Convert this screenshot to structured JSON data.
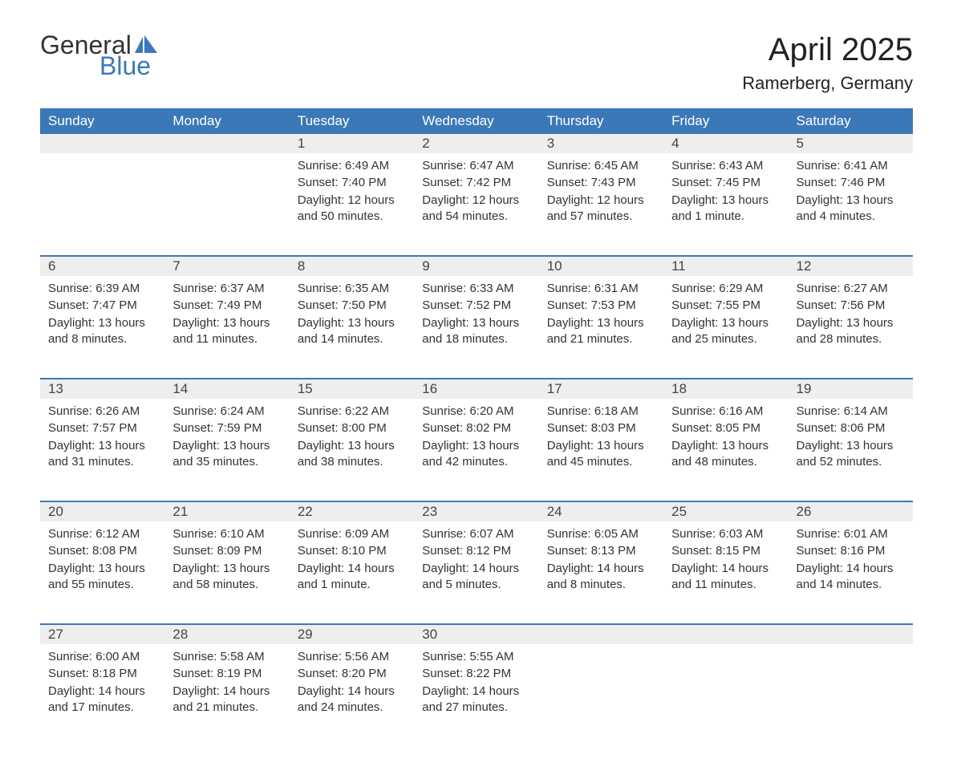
{
  "logo": {
    "general": "General",
    "blue": "Blue",
    "sail_color": "#3b78b8"
  },
  "title": "April 2025",
  "location": "Ramerberg, Germany",
  "colors": {
    "header_bg": "#3b78b8",
    "header_text": "#ffffff",
    "daynum_bg": "#eeeeee",
    "border": "#3b78b8",
    "text": "#333333"
  },
  "weekdays": [
    "Sunday",
    "Monday",
    "Tuesday",
    "Wednesday",
    "Thursday",
    "Friday",
    "Saturday"
  ],
  "weeks": [
    [
      null,
      null,
      {
        "n": "1",
        "sunrise": "6:49 AM",
        "sunset": "7:40 PM",
        "daylight": "12 hours and 50 minutes."
      },
      {
        "n": "2",
        "sunrise": "6:47 AM",
        "sunset": "7:42 PM",
        "daylight": "12 hours and 54 minutes."
      },
      {
        "n": "3",
        "sunrise": "6:45 AM",
        "sunset": "7:43 PM",
        "daylight": "12 hours and 57 minutes."
      },
      {
        "n": "4",
        "sunrise": "6:43 AM",
        "sunset": "7:45 PM",
        "daylight": "13 hours and 1 minute."
      },
      {
        "n": "5",
        "sunrise": "6:41 AM",
        "sunset": "7:46 PM",
        "daylight": "13 hours and 4 minutes."
      }
    ],
    [
      {
        "n": "6",
        "sunrise": "6:39 AM",
        "sunset": "7:47 PM",
        "daylight": "13 hours and 8 minutes."
      },
      {
        "n": "7",
        "sunrise": "6:37 AM",
        "sunset": "7:49 PM",
        "daylight": "13 hours and 11 minutes."
      },
      {
        "n": "8",
        "sunrise": "6:35 AM",
        "sunset": "7:50 PM",
        "daylight": "13 hours and 14 minutes."
      },
      {
        "n": "9",
        "sunrise": "6:33 AM",
        "sunset": "7:52 PM",
        "daylight": "13 hours and 18 minutes."
      },
      {
        "n": "10",
        "sunrise": "6:31 AM",
        "sunset": "7:53 PM",
        "daylight": "13 hours and 21 minutes."
      },
      {
        "n": "11",
        "sunrise": "6:29 AM",
        "sunset": "7:55 PM",
        "daylight": "13 hours and 25 minutes."
      },
      {
        "n": "12",
        "sunrise": "6:27 AM",
        "sunset": "7:56 PM",
        "daylight": "13 hours and 28 minutes."
      }
    ],
    [
      {
        "n": "13",
        "sunrise": "6:26 AM",
        "sunset": "7:57 PM",
        "daylight": "13 hours and 31 minutes."
      },
      {
        "n": "14",
        "sunrise": "6:24 AM",
        "sunset": "7:59 PM",
        "daylight": "13 hours and 35 minutes."
      },
      {
        "n": "15",
        "sunrise": "6:22 AM",
        "sunset": "8:00 PM",
        "daylight": "13 hours and 38 minutes."
      },
      {
        "n": "16",
        "sunrise": "6:20 AM",
        "sunset": "8:02 PM",
        "daylight": "13 hours and 42 minutes."
      },
      {
        "n": "17",
        "sunrise": "6:18 AM",
        "sunset": "8:03 PM",
        "daylight": "13 hours and 45 minutes."
      },
      {
        "n": "18",
        "sunrise": "6:16 AM",
        "sunset": "8:05 PM",
        "daylight": "13 hours and 48 minutes."
      },
      {
        "n": "19",
        "sunrise": "6:14 AM",
        "sunset": "8:06 PM",
        "daylight": "13 hours and 52 minutes."
      }
    ],
    [
      {
        "n": "20",
        "sunrise": "6:12 AM",
        "sunset": "8:08 PM",
        "daylight": "13 hours and 55 minutes."
      },
      {
        "n": "21",
        "sunrise": "6:10 AM",
        "sunset": "8:09 PM",
        "daylight": "13 hours and 58 minutes."
      },
      {
        "n": "22",
        "sunrise": "6:09 AM",
        "sunset": "8:10 PM",
        "daylight": "14 hours and 1 minute."
      },
      {
        "n": "23",
        "sunrise": "6:07 AM",
        "sunset": "8:12 PM",
        "daylight": "14 hours and 5 minutes."
      },
      {
        "n": "24",
        "sunrise": "6:05 AM",
        "sunset": "8:13 PM",
        "daylight": "14 hours and 8 minutes."
      },
      {
        "n": "25",
        "sunrise": "6:03 AM",
        "sunset": "8:15 PM",
        "daylight": "14 hours and 11 minutes."
      },
      {
        "n": "26",
        "sunrise": "6:01 AM",
        "sunset": "8:16 PM",
        "daylight": "14 hours and 14 minutes."
      }
    ],
    [
      {
        "n": "27",
        "sunrise": "6:00 AM",
        "sunset": "8:18 PM",
        "daylight": "14 hours and 17 minutes."
      },
      {
        "n": "28",
        "sunrise": "5:58 AM",
        "sunset": "8:19 PM",
        "daylight": "14 hours and 21 minutes."
      },
      {
        "n": "29",
        "sunrise": "5:56 AM",
        "sunset": "8:20 PM",
        "daylight": "14 hours and 24 minutes."
      },
      {
        "n": "30",
        "sunrise": "5:55 AM",
        "sunset": "8:22 PM",
        "daylight": "14 hours and 27 minutes."
      },
      null,
      null,
      null
    ]
  ],
  "labels": {
    "sunrise": "Sunrise: ",
    "sunset": "Sunset: ",
    "daylight": "Daylight: "
  }
}
